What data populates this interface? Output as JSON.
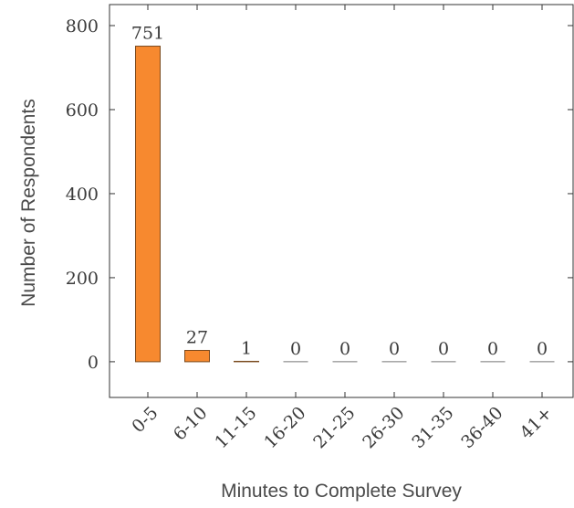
{
  "chart_data": {
    "type": "bar",
    "categories": [
      "0-5",
      "6-10",
      "11-15",
      "16-20",
      "21-25",
      "26-30",
      "31-35",
      "36-40",
      "41+"
    ],
    "values": [
      751,
      27,
      1,
      0,
      0,
      0,
      0,
      0,
      0
    ],
    "data_labels": [
      "751",
      "27",
      "1",
      "0",
      "0",
      "0",
      "0",
      "0",
      "0"
    ],
    "xlabel": "Minutes to Complete Survey",
    "ylabel": "Number of Respondents",
    "ylim": [
      -85,
      850
    ],
    "yticks": [
      0,
      200,
      400,
      600,
      800
    ],
    "grid": false,
    "bar_color": "#f7892f",
    "bar_edge_color": "#7a4a1e"
  }
}
